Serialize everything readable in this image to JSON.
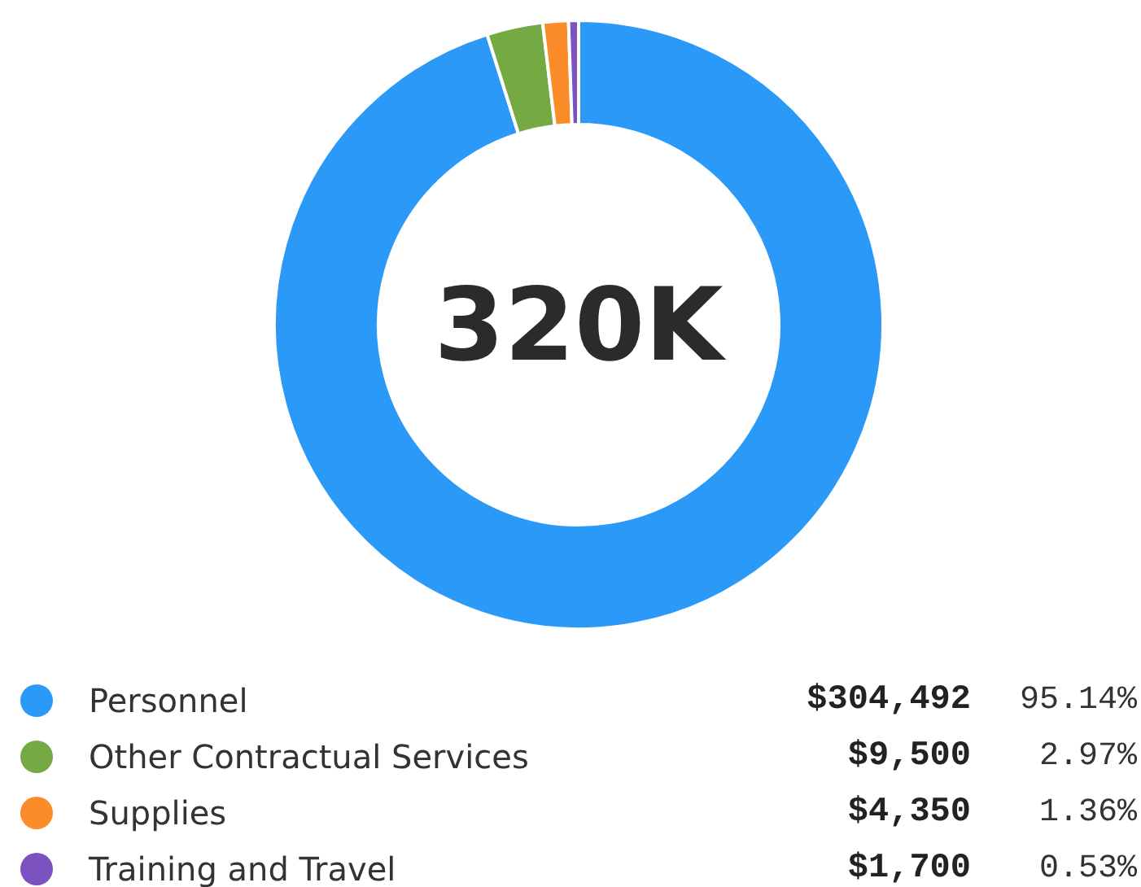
{
  "chart_data": {
    "type": "donut",
    "categories": [
      "Personnel",
      "Other Contractual Services",
      "Supplies",
      "Training and Travel"
    ],
    "values": [
      95.14,
      2.97,
      1.36,
      0.53
    ],
    "colors": [
      "#2b99f7",
      "#74a944",
      "#fb8c2a",
      "#7b52c0"
    ],
    "value_labels": [
      [
        "$304,492",
        "95.14%"
      ],
      [
        "$9,500",
        "2.97%"
      ],
      [
        "$4,350",
        "1.36%"
      ],
      [
        "$1,700",
        "0.53%"
      ]
    ],
    "annotations": [
      "320K"
    ],
    "legend": "bottom"
  }
}
